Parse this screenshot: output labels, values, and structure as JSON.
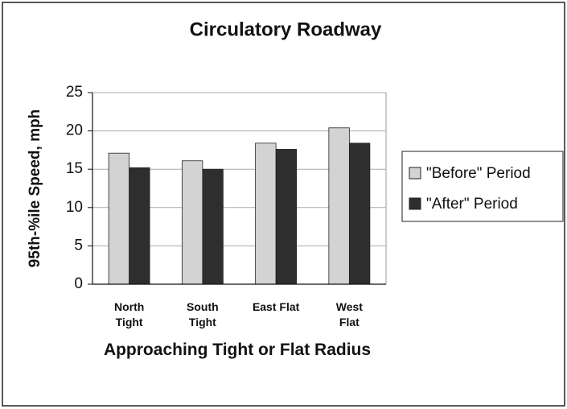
{
  "chart_data": {
    "type": "bar",
    "title": "Circulatory Roadway",
    "x_label": "Approaching Tight or Flat Radius",
    "y_label": "95th-%ile Speed, mph",
    "categories": [
      "North Tight",
      "South Tight",
      "East Flat",
      "West Flat"
    ],
    "series": [
      {
        "name": "\"Before\" Period",
        "color": "#d3d3d3",
        "values": [
          17.1,
          16.1,
          18.4,
          20.4
        ]
      },
      {
        "name": "\"After\" Period",
        "color": "#2e2e2e",
        "values": [
          15.2,
          15.0,
          17.6,
          18.4
        ]
      }
    ],
    "ylim": [
      0,
      25
    ],
    "yticks": [
      0,
      5,
      10,
      15,
      20,
      25
    ],
    "grid": true,
    "legend": "right"
  }
}
